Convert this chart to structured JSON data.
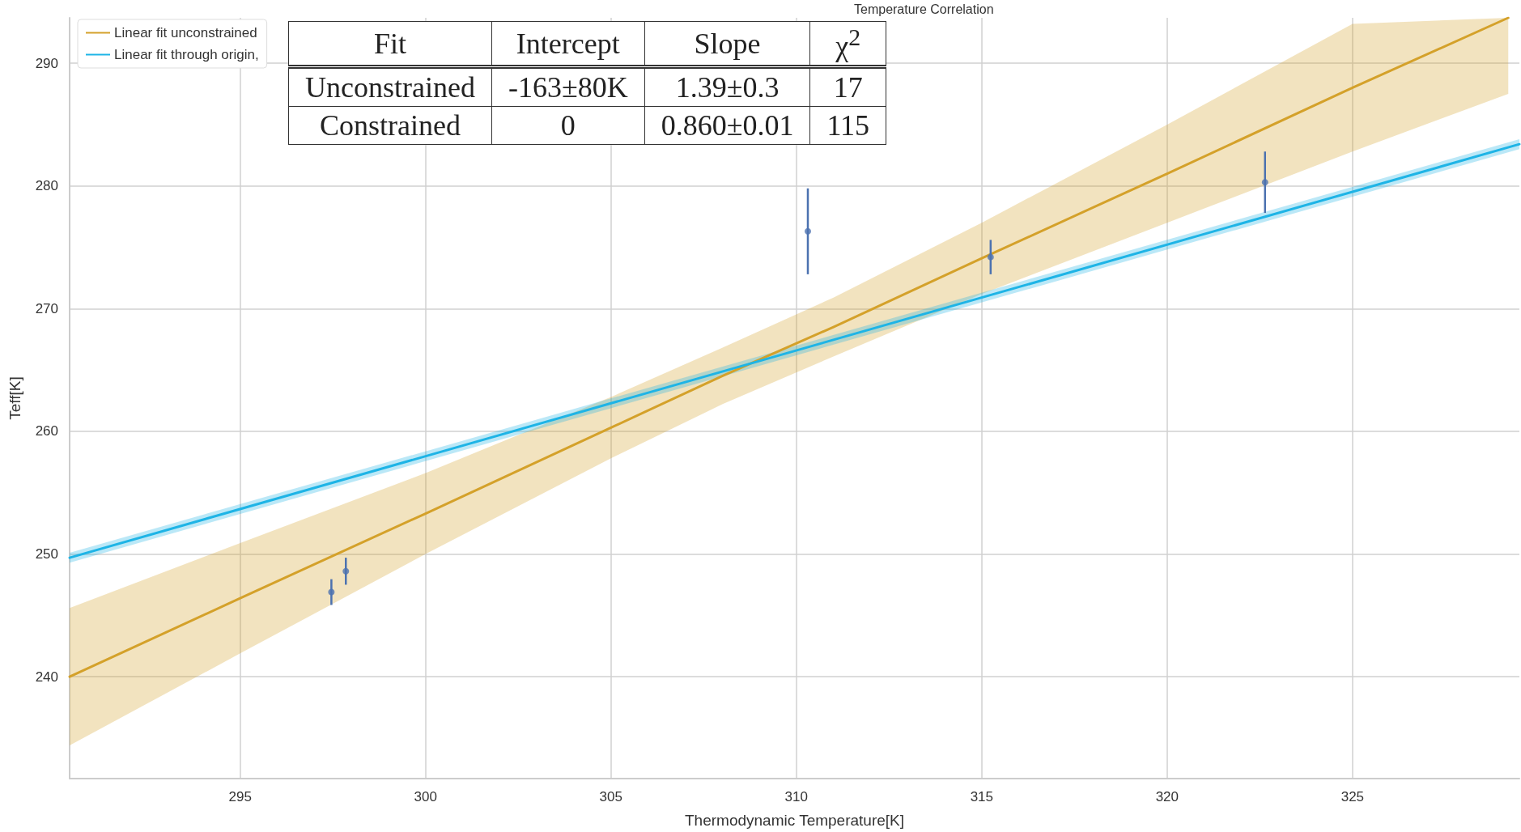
{
  "chart_data": {
    "type": "line",
    "title": "Temperature Correlation",
    "xlabel": "Thermodynamic Temperature[K]",
    "ylabel": "Teff[K]",
    "xlim": [
      290.4,
      329.5
    ],
    "ylim": [
      231.7,
      293.7
    ],
    "xticks": [
      295,
      300,
      305,
      310,
      315,
      320,
      325
    ],
    "yticks": [
      240,
      250,
      260,
      270,
      280,
      290
    ],
    "grid": true,
    "legend": "top left",
    "series": [
      {
        "name": "Linear fit unconstrained",
        "color": "#d4a12a",
        "marker": "none",
        "line_style": "solid",
        "x": [
          290.4,
          295,
          300,
          305,
          308,
          311,
          315,
          320,
          325,
          329.2
        ],
        "values": [
          240,
          246.4,
          253.3,
          260.3,
          264.5,
          268.5,
          274.1,
          281.0,
          288.0,
          293.7
        ],
        "lower": [
          234.4,
          241.9,
          250.0,
          257.8,
          262.2,
          266.1,
          271.2,
          277.0,
          282.8,
          287.5
        ],
        "upper": [
          245.6,
          250.9,
          256.6,
          262.8,
          266.8,
          270.9,
          277.0,
          285.0,
          293.2,
          293.7
        ]
      },
      {
        "name": "Linear fit through origin,",
        "color": "#1eb4e6",
        "marker": "none",
        "line_style": "solid",
        "x": [
          290.4,
          329.5
        ],
        "values": [
          249.7,
          283.4
        ],
        "lower": [
          249.3,
          283.0
        ],
        "upper": [
          250.1,
          283.8
        ]
      },
      {
        "type": "scatter",
        "color": "#4c72b0",
        "marker": "circle",
        "x": [
          297.46,
          297.85,
          310.31,
          315.24,
          322.64
        ],
        "values": [
          246.9,
          248.6,
          276.3,
          274.2,
          280.3
        ],
        "errors": [
          1.05,
          1.1,
          3.5,
          1.4,
          2.5
        ]
      }
    ],
    "annotations": [
      "Fit",
      "Intercept",
      "Slope",
      "χ$^{2}$",
      "Unconstrained",
      "-163±80K",
      "1.39±0.3",
      "17",
      "Constrained",
      "0",
      "0.860±0.01",
      "115"
    ]
  }
}
